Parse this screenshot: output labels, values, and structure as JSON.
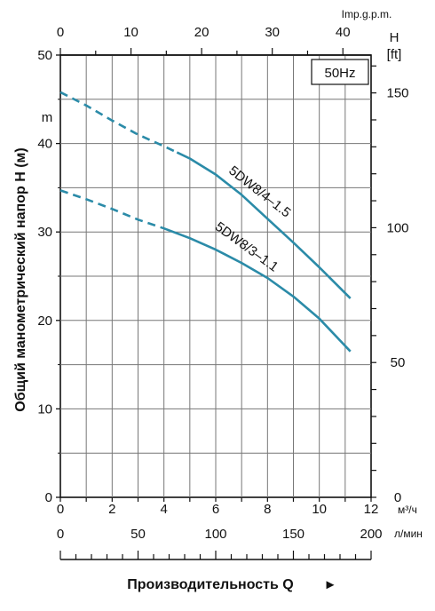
{
  "chart_data": {
    "type": "line",
    "frequency_label": "50Hz",
    "ylabel": "Общий манометрический напор H (м)",
    "ylabel_unit": "m",
    "y_right_label_top": "H",
    "y_right_label_unit": "[ft]",
    "top_axis_label": "Imp.g.p.m.",
    "x_unit_m3": "м³/ч",
    "x_unit_lmin": "л/мин",
    "xlabel": "Производительность Q",
    "xlabel_arrow": "►",
    "xlim_m3h": [
      0,
      11.2
    ],
    "ylim_m": [
      0,
      50
    ],
    "grid": true,
    "axes": {
      "top_gpm_ticks": [
        "0",
        "10",
        "20",
        "30",
        "40"
      ],
      "bottom_m3h_ticks": [
        "0",
        "2",
        "4",
        "6",
        "8",
        "10",
        "12"
      ],
      "bottom_lmin_ticks": [
        "0",
        "50",
        "100",
        "150",
        "200"
      ],
      "left_m_ticks": [
        "0",
        "10",
        "20",
        "30",
        "40",
        "50"
      ],
      "right_ft_ticks": [
        "0",
        "50",
        "100",
        "150"
      ]
    },
    "series": [
      {
        "name": "5DW8/4–1.5",
        "color": "#2b8ba8",
        "dashed_to_x": 4.5,
        "points": [
          [
            0,
            45.8
          ],
          [
            1,
            44.3
          ],
          [
            2,
            42.6
          ],
          [
            3,
            41.0
          ],
          [
            4,
            39.7
          ],
          [
            5,
            38.3
          ],
          [
            6,
            36.5
          ],
          [
            7,
            34.2
          ],
          [
            8,
            31.5
          ],
          [
            9,
            28.8
          ],
          [
            10,
            26.0
          ],
          [
            11.2,
            22.5
          ]
        ]
      },
      {
        "name": "5DW8/3–1.1",
        "color": "#2b8ba8",
        "dashed_to_x": 4.0,
        "points": [
          [
            0,
            34.7
          ],
          [
            1,
            33.7
          ],
          [
            2,
            32.6
          ],
          [
            3,
            31.4
          ],
          [
            4,
            30.4
          ],
          [
            5,
            29.3
          ],
          [
            6,
            28.0
          ],
          [
            7,
            26.5
          ],
          [
            8,
            24.8
          ],
          [
            9,
            22.7
          ],
          [
            10,
            20.2
          ],
          [
            11.2,
            16.5
          ]
        ]
      }
    ]
  }
}
